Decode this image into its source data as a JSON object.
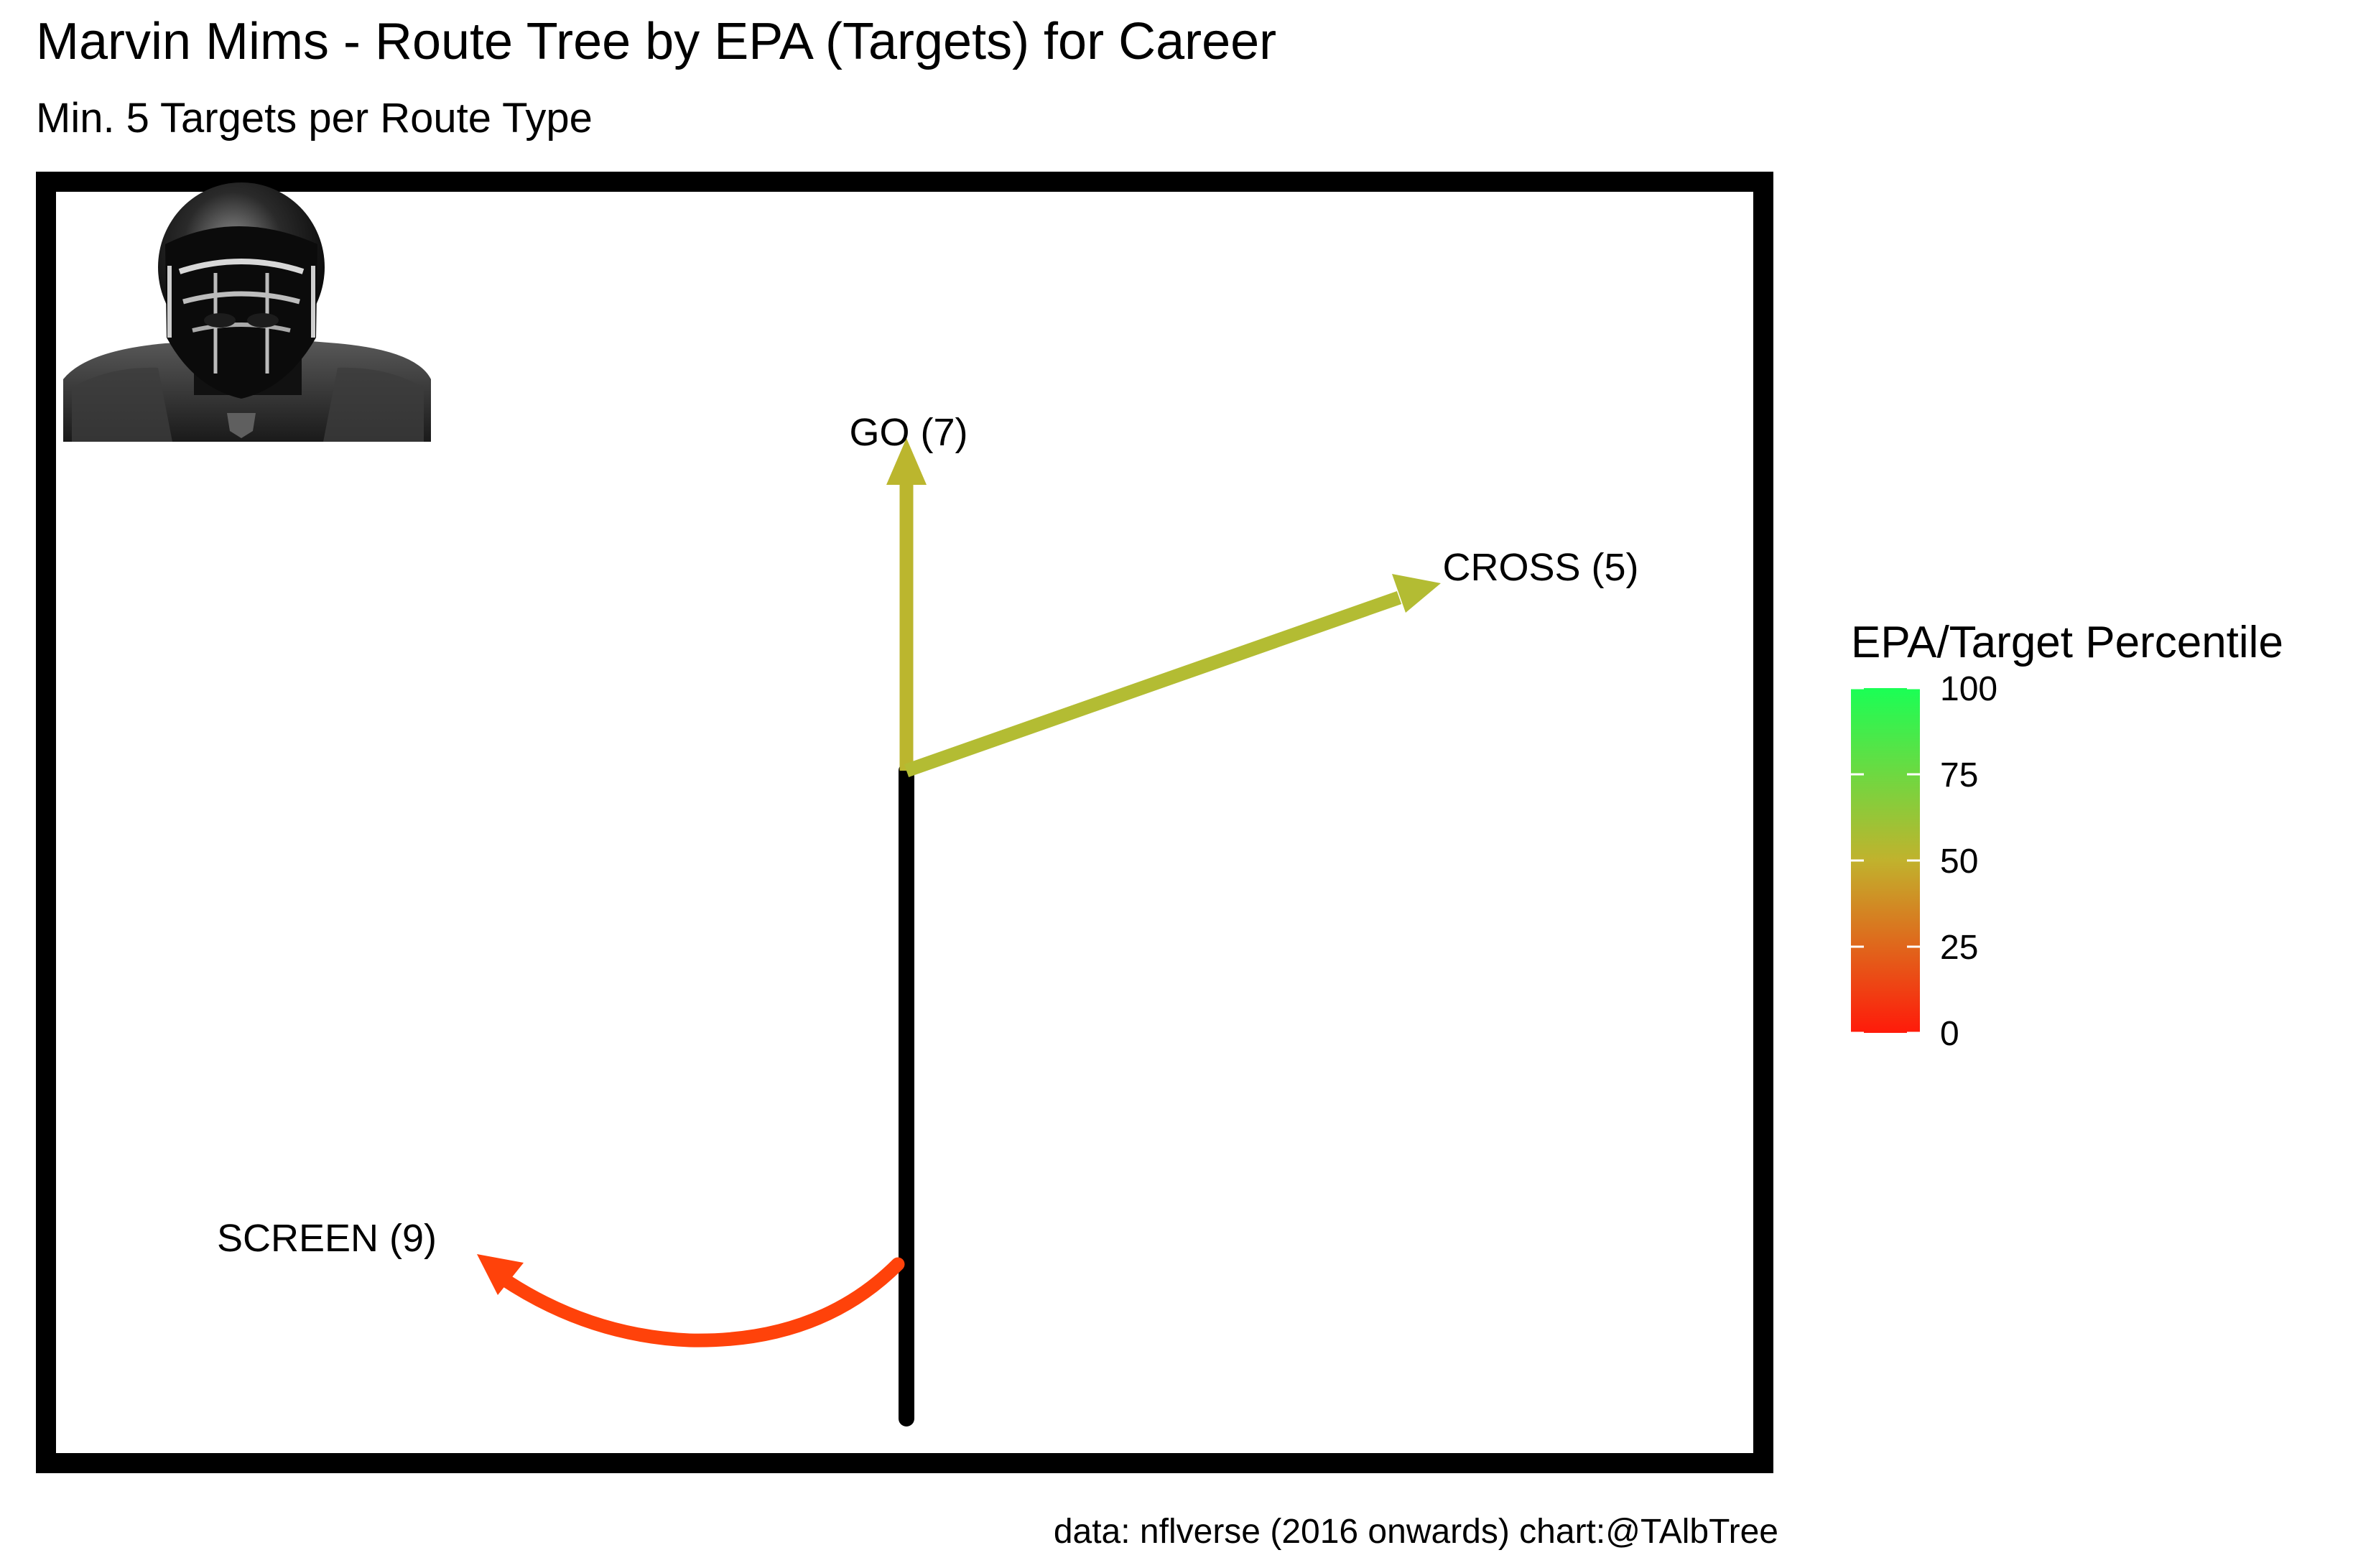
{
  "chart_data": {
    "type": "route-tree",
    "title": "Marvin Mims - Route Tree by EPA (Targets) for Career",
    "subtitle": "Min. 5 Targets per Route Type",
    "caption": "data: nflverse (2016 onwards)  chart:@TAlbTree",
    "image": "player-helmet-photo",
    "routes": [
      {
        "route": "GO",
        "targets": 7,
        "label": "GO (7)",
        "color": "#BBB62E"
      },
      {
        "route": "CROSS",
        "targets": 5,
        "label": "CROSS (5)",
        "color": "#B3BC33"
      },
      {
        "route": "SCREEN",
        "targets": 9,
        "label": "SCREEN (9)",
        "color": "#FF420A"
      }
    ],
    "stem_color": "#000000",
    "legend": {
      "title": "EPA/Target Percentile",
      "ticks": [
        "100",
        "75",
        "50",
        "25",
        "0"
      ],
      "range": [
        0,
        100
      ],
      "colors": {
        "low": "#FF1A0A",
        "mid": "#C1B22D",
        "high": "#1AFF55"
      },
      "placement": "right"
    }
  }
}
